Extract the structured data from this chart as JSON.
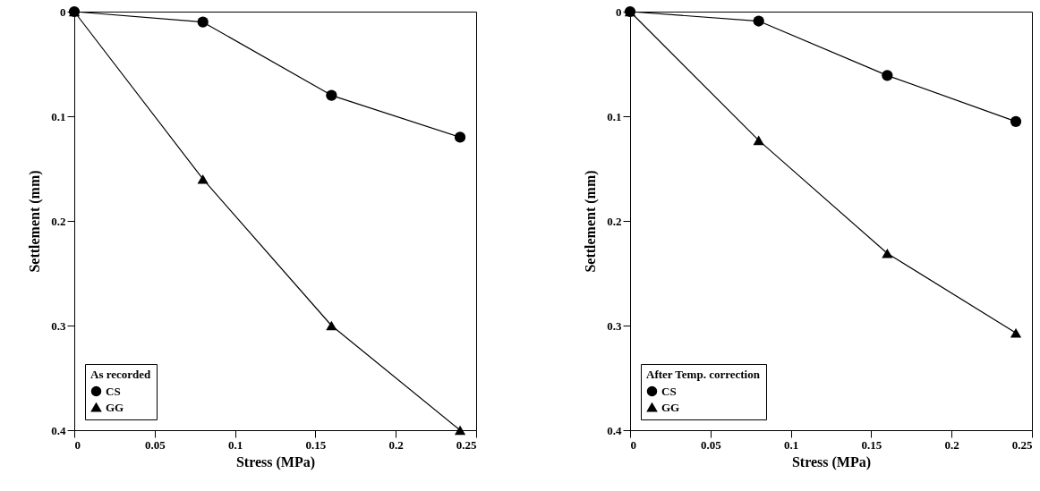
{
  "chart_data": [
    {
      "type": "line",
      "xlabel": "Stress (MPa)",
      "ylabel": "Settlement (mm)",
      "legend_title": "As recorded",
      "legend": "bottom left",
      "grid": false,
      "x": [
        0,
        0.08,
        0.16,
        0.24
      ],
      "series": [
        {
          "name": "CS",
          "color": "#000000",
          "marker": "circle",
          "values": [
            0,
            0.01,
            0.08,
            0.12
          ]
        },
        {
          "name": "GG",
          "color": "#000000",
          "marker": "triangle",
          "values": [
            0,
            0.16,
            0.3,
            0.4
          ]
        }
      ],
      "xlim": [
        0,
        0.25
      ],
      "xticks": [
        0,
        0.05,
        0.1,
        0.15,
        0.2,
        0.25
      ],
      "ylim": [
        0.4,
        0
      ],
      "yticks": [
        0,
        0.1,
        0.2,
        0.3,
        0.4
      ]
    },
    {
      "type": "line",
      "xlabel": "Stress (MPa)",
      "ylabel": "Settlement (mm)",
      "legend_title": "After Temp. correction",
      "legend": "bottom left",
      "grid": false,
      "x": [
        0,
        0.08,
        0.16,
        0.24
      ],
      "series": [
        {
          "name": "CS",
          "color": "#000000",
          "marker": "circle",
          "values": [
            0,
            0.009,
            0.061,
            0.105
          ]
        },
        {
          "name": "GG",
          "color": "#000000",
          "marker": "triangle",
          "values": [
            0,
            0.123,
            0.231,
            0.307
          ]
        }
      ],
      "xlim": [
        0,
        0.25
      ],
      "xticks": [
        0,
        0.05,
        0.1,
        0.15,
        0.2,
        0.25
      ],
      "ylim": [
        0.4,
        0
      ],
      "yticks": [
        0,
        0.1,
        0.2,
        0.3,
        0.4
      ]
    }
  ]
}
